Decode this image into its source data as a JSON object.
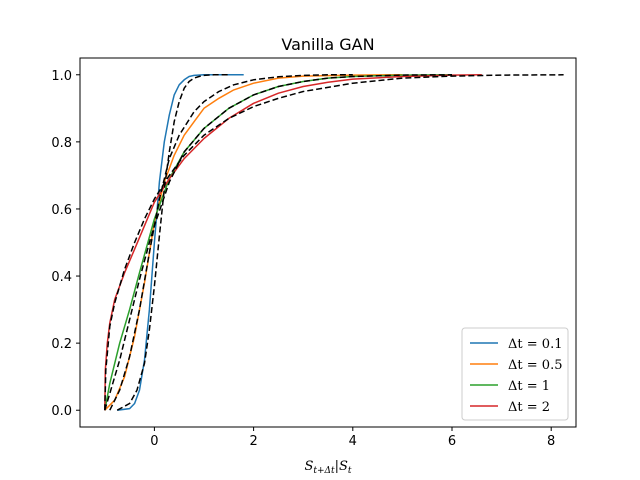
{
  "chart_data": {
    "type": "line",
    "title": "Vanilla GAN",
    "xlabel": "S_{t+Δt}|S_t",
    "xlabel_parts": {
      "main": "S",
      "main_sub": "t+Δt",
      "sep": "|",
      "cond": "S",
      "cond_sub": "t"
    },
    "ylabel": "",
    "xlim": [
      -1.5,
      8.5
    ],
    "ylim": [
      -0.05,
      1.05
    ],
    "xticks": [
      0,
      2,
      4,
      6,
      8
    ],
    "xtick_labels": [
      "0",
      "2",
      "4",
      "6",
      "8"
    ],
    "yticks": [
      0.0,
      0.2,
      0.4,
      0.6,
      0.8,
      1.0
    ],
    "ytick_labels": [
      "0.0",
      "0.2",
      "0.4",
      "0.6",
      "0.8",
      "1.0"
    ],
    "grid": false,
    "legend_position": "lower-right",
    "colors": {
      "dt_0_1": "#1f77b4",
      "dt_0_5": "#ff7f0e",
      "dt_1": "#2ca02c",
      "dt_2": "#d62728",
      "reference": "#000000"
    },
    "series": [
      {
        "name": "Δt = 0.1",
        "legend_var": "Δt",
        "legend_value": "0.1",
        "color": "#1f77b4",
        "style": "solid",
        "x": [
          -0.75,
          -0.5,
          -0.4,
          -0.3,
          -0.2,
          -0.1,
          0.0,
          0.1,
          0.2,
          0.3,
          0.4,
          0.5,
          0.6,
          0.7,
          0.8,
          1.0,
          1.3,
          1.8
        ],
        "y": [
          0.0,
          0.005,
          0.02,
          0.06,
          0.15,
          0.3,
          0.5,
          0.68,
          0.8,
          0.88,
          0.94,
          0.97,
          0.985,
          0.995,
          0.998,
          1.0,
          1.0,
          1.0
        ]
      },
      {
        "name": "Δt = 0.5",
        "legend_var": "Δt",
        "legend_value": "0.5",
        "color": "#ff7f0e",
        "style": "solid",
        "x": [
          -1.0,
          -0.8,
          -0.6,
          -0.4,
          -0.2,
          0.0,
          0.2,
          0.4,
          0.6,
          0.8,
          1.0,
          1.3,
          1.6,
          2.0,
          2.5,
          3.0,
          4.0,
          5.0
        ],
        "y": [
          0.0,
          0.03,
          0.1,
          0.22,
          0.38,
          0.56,
          0.68,
          0.76,
          0.82,
          0.86,
          0.9,
          0.93,
          0.955,
          0.975,
          0.99,
          0.996,
          0.999,
          1.0
        ]
      },
      {
        "name": "Δt = 1",
        "legend_var": "Δt",
        "legend_value": "1",
        "color": "#2ca02c",
        "style": "solid",
        "x": [
          -1.0,
          -0.9,
          -0.7,
          -0.5,
          -0.3,
          0.0,
          0.3,
          0.6,
          1.0,
          1.5,
          2.0,
          2.5,
          3.0,
          3.5,
          4.0,
          5.0,
          6.0
        ],
        "y": [
          0.0,
          0.08,
          0.2,
          0.3,
          0.41,
          0.57,
          0.69,
          0.77,
          0.84,
          0.9,
          0.94,
          0.965,
          0.98,
          0.99,
          0.995,
          0.999,
          1.0
        ]
      },
      {
        "name": "Δt = 2",
        "legend_var": "Δt",
        "legend_value": "2",
        "color": "#d62728",
        "style": "solid",
        "x": [
          -1.0,
          -0.99,
          -0.95,
          -0.9,
          -0.8,
          -0.6,
          -0.4,
          -0.2,
          0.0,
          0.3,
          0.6,
          1.0,
          1.5,
          2.0,
          2.5,
          3.0,
          3.5,
          4.0,
          5.0,
          6.0,
          6.6
        ],
        "y": [
          0.0,
          0.12,
          0.2,
          0.26,
          0.33,
          0.41,
          0.48,
          0.55,
          0.62,
          0.69,
          0.75,
          0.81,
          0.87,
          0.915,
          0.945,
          0.965,
          0.978,
          0.987,
          0.995,
          0.999,
          1.0
        ]
      },
      {
        "name": "",
        "color": "#000000",
        "style": "dashed",
        "x": [
          -0.75,
          -0.5,
          -0.35,
          -0.2,
          -0.1,
          0.0,
          0.1,
          0.2,
          0.3,
          0.4,
          0.5,
          0.6,
          0.7,
          0.8,
          0.9,
          1.0,
          1.2,
          1.5
        ],
        "y": [
          0.0,
          0.02,
          0.06,
          0.14,
          0.24,
          0.37,
          0.52,
          0.66,
          0.77,
          0.86,
          0.92,
          0.96,
          0.98,
          0.99,
          0.995,
          0.998,
          1.0,
          1.0
        ]
      },
      {
        "name": "",
        "color": "#000000",
        "style": "dashed",
        "x": [
          -0.9,
          -0.7,
          -0.5,
          -0.3,
          -0.1,
          0.0,
          0.1,
          0.3,
          0.5,
          0.8,
          1.0,
          1.3,
          1.6,
          2.0,
          2.5,
          3.0,
          3.5,
          4.0
        ],
        "y": [
          0.0,
          0.06,
          0.16,
          0.3,
          0.47,
          0.55,
          0.63,
          0.75,
          0.82,
          0.89,
          0.92,
          0.95,
          0.97,
          0.985,
          0.994,
          0.998,
          1.0,
          1.0
        ]
      },
      {
        "name": "",
        "color": "#000000",
        "style": "dashed",
        "x": [
          -1.0,
          -0.9,
          -0.7,
          -0.5,
          -0.3,
          -0.1,
          0.0,
          0.3,
          0.6,
          1.0,
          1.5,
          2.0,
          2.5,
          3.0,
          3.5,
          4.0,
          5.0,
          6.0
        ],
        "y": [
          0.0,
          0.05,
          0.15,
          0.27,
          0.39,
          0.5,
          0.55,
          0.68,
          0.77,
          0.84,
          0.9,
          0.94,
          0.965,
          0.98,
          0.99,
          0.995,
          0.999,
          1.0
        ]
      },
      {
        "name": "",
        "color": "#000000",
        "style": "dashed",
        "x": [
          -1.0,
          -0.98,
          -0.9,
          -0.8,
          -0.6,
          -0.4,
          -0.2,
          0.0,
          0.3,
          0.6,
          1.0,
          1.5,
          2.0,
          2.5,
          3.0,
          4.0,
          5.0,
          6.0,
          7.0,
          8.25
        ],
        "y": [
          0.0,
          0.12,
          0.25,
          0.32,
          0.42,
          0.5,
          0.57,
          0.63,
          0.7,
          0.76,
          0.82,
          0.87,
          0.905,
          0.93,
          0.95,
          0.975,
          0.99,
          0.996,
          0.999,
          1.0
        ]
      }
    ]
  }
}
